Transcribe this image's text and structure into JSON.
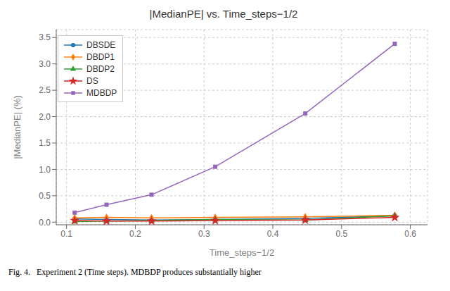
{
  "chart_data": {
    "type": "line",
    "title": "|MedianPE| vs. Time_steps−1/2",
    "xlabel": "Time_steps−1/2",
    "ylabel": "|MedianPE| (%)",
    "caption": "Fig. 4.   Experiment 2 (Time steps). MDBDP produces substantially higher",
    "x": [
      0.1118,
      0.1581,
      0.2236,
      0.3162,
      0.4472,
      0.5774
    ],
    "series": [
      {
        "name": "DBSDE",
        "color": "#1f77b4",
        "marker": "circle",
        "values": [
          0.06,
          0.05,
          0.04,
          0.05,
          0.07,
          0.12
        ]
      },
      {
        "name": "DBDP1",
        "color": "#ff7f0e",
        "marker": "diamond",
        "values": [
          0.08,
          0.09,
          0.08,
          0.09,
          0.1,
          0.13
        ]
      },
      {
        "name": "DBDP2",
        "color": "#2ca02c",
        "marker": "triangle",
        "values": [
          0.01,
          0.02,
          0.03,
          0.05,
          0.04,
          0.12
        ]
      },
      {
        "name": "DS",
        "color": "#d62728",
        "marker": "star",
        "values": [
          0.03,
          0.02,
          0.02,
          0.03,
          0.04,
          0.09
        ]
      },
      {
        "name": "MDBDP",
        "color": "#9467bd",
        "marker": "square",
        "values": [
          0.18,
          0.33,
          0.52,
          1.05,
          2.06,
          3.38
        ]
      }
    ],
    "xlim": [
      0.085,
      0.625
    ],
    "ylim": [
      -0.05,
      3.65
    ],
    "xticks": [
      0.1,
      0.2,
      0.3,
      0.4,
      0.5,
      0.6
    ],
    "yticks": [
      {
        "value": 0,
        "label": "0.0"
      },
      0.5,
      {
        "value": 1,
        "label": "1.0"
      },
      1.5,
      {
        "value": 2,
        "label": "2.0"
      },
      2.5,
      {
        "value": 3,
        "label": "3.0"
      },
      3.5
    ],
    "grid": true,
    "legend": "upper left"
  }
}
